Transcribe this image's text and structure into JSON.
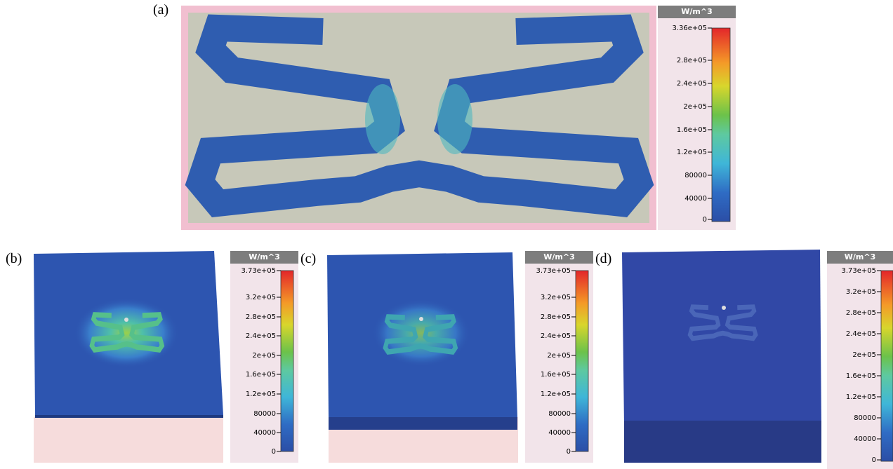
{
  "panels": [
    {
      "label": "(a)",
      "colorbar": {
        "unit": "W/m^3",
        "ticks": [
          "3.36e+05",
          "2.8e+05",
          "2.4e+05",
          "2e+05",
          "1.6e+05",
          "1.2e+05",
          "80000",
          "40000",
          "0"
        ]
      }
    },
    {
      "label": "(b)",
      "colorbar": {
        "unit": "W/m^3",
        "ticks": [
          "3.73e+05",
          "3.2e+05",
          "2.8e+05",
          "2.4e+05",
          "2e+05",
          "1.6e+05",
          "1.2e+05",
          "80000",
          "40000",
          "0"
        ]
      }
    },
    {
      "label": "(c)",
      "colorbar": {
        "unit": "W/m^3",
        "ticks": [
          "3.73e+05",
          "3.2e+05",
          "2.8e+05",
          "2.4e+05",
          "2e+05",
          "1.6e+05",
          "1.2e+05",
          "80000",
          "40000",
          "0"
        ]
      }
    },
    {
      "label": "(d)",
      "colorbar": {
        "unit": "W/m^3",
        "ticks": [
          "3.73e+05",
          "3.2e+05",
          "2.8e+05",
          "2.4e+05",
          "2e+05",
          "1.6e+05",
          "1.2e+05",
          "80000",
          "40000",
          "0"
        ]
      }
    }
  ]
}
